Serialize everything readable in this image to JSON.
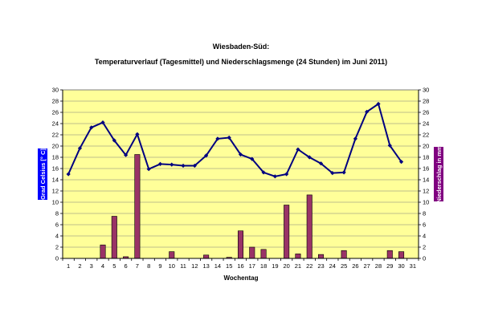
{
  "chart_data": {
    "type": "bar+line",
    "title": "Wiesbaden-Süd:",
    "subtitle": "Temperaturverlauf (Tagesmittel) und Niederschlagsmenge (24 Stunden) im Juni 2011)",
    "xlabel": "Wochentag",
    "ylabel_left": "Grad Celsius [° C]",
    "ylabel_right": "Niederschlag in mm",
    "ylim": [
      0,
      30
    ],
    "ytick_step": 2,
    "x": [
      1,
      2,
      3,
      4,
      5,
      6,
      7,
      8,
      9,
      10,
      11,
      12,
      13,
      14,
      15,
      16,
      17,
      18,
      19,
      20,
      21,
      22,
      23,
      24,
      25,
      26,
      27,
      28,
      29,
      30,
      31
    ],
    "temperature": [
      15.0,
      19.6,
      23.3,
      24.2,
      21.0,
      18.4,
      22.1,
      15.9,
      16.8,
      16.7,
      16.5,
      16.5,
      18.3,
      21.3,
      21.5,
      18.5,
      17.7,
      15.3,
      14.6,
      15.0,
      19.4,
      18.0,
      16.9,
      15.2,
      15.3,
      21.3,
      26.1,
      27.5,
      20.1,
      17.2,
      null
    ],
    "precipitation": [
      0,
      0,
      0,
      2.4,
      7.5,
      0.3,
      18.5,
      0,
      0,
      1.2,
      0,
      0,
      0.6,
      0,
      0.2,
      4.9,
      2.0,
      1.6,
      0,
      9.5,
      0.8,
      11.3,
      0.7,
      0,
      1.4,
      0,
      0,
      0,
      1.4,
      1.2,
      0
    ],
    "grid": true,
    "colors": {
      "plot_bg": "#ffff99",
      "line": "#000080",
      "bar": "#993366",
      "left_axis_label_bg": "#0000ff",
      "right_axis_label_bg": "#800080",
      "grid": "#808080"
    }
  }
}
